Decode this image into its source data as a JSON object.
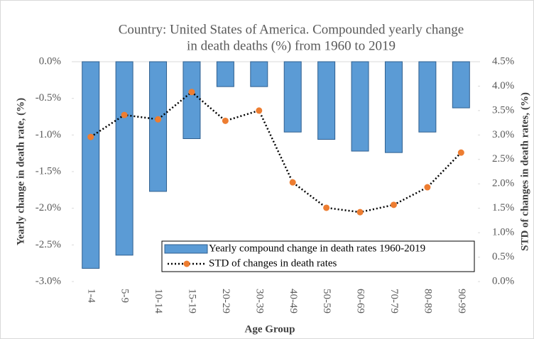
{
  "chart_data": {
    "type": "combo",
    "title": [
      "Country: United States of America. Compounded yearly change",
      "in death deaths (%) from 1960 to 2019"
    ],
    "x_label": "Age Group",
    "y_label": "Yearly change in death rate, (%)",
    "y2_label": "STD of changes in death rates, (%)",
    "categories": [
      "1-4",
      "5-9",
      "10-14",
      "15-19",
      "20-29",
      "30-39",
      "40-49",
      "50-59",
      "60-69",
      "70-79",
      "80-89",
      "90-99"
    ],
    "series": [
      {
        "name": "Yearly compound change in death rates 1960-2019",
        "type": "bar",
        "color": "#5b9bd5",
        "values": [
          -2.82,
          -2.64,
          -1.77,
          -1.05,
          -0.34,
          -0.34,
          -0.96,
          -1.06,
          -1.22,
          -1.24,
          -0.96,
          -0.63
        ]
      },
      {
        "name": "STD of changes in death rates",
        "type": "line",
        "axis": "y2",
        "color": "#ed7d31",
        "values": [
          2.96,
          3.41,
          3.32,
          3.88,
          3.29,
          3.5,
          2.03,
          1.51,
          1.42,
          1.57,
          1.93,
          2.64
        ]
      }
    ],
    "ylim": [
      -3.0,
      0.0
    ],
    "yticks": [
      {
        "value": 0.0,
        "label": "0.0%"
      },
      {
        "value": -0.5,
        "label": "-0.5%"
      },
      {
        "value": -1.0,
        "label": "-1.0%"
      },
      {
        "value": -1.5,
        "label": "-1.5%"
      },
      {
        "value": -2.0,
        "label": "-2.0%"
      },
      {
        "value": -2.5,
        "label": "-2.5%"
      },
      {
        "value": -3.0,
        "label": "-3.0%"
      }
    ],
    "y2lim": [
      0.0,
      4.5
    ],
    "y2ticks": [
      {
        "value": 4.5,
        "label": "4.5%"
      },
      {
        "value": 4.0,
        "label": "4.0%"
      },
      {
        "value": 3.5,
        "label": "3.5%"
      },
      {
        "value": 3.0,
        "label": "3.0%"
      },
      {
        "value": 2.5,
        "label": "2.5%"
      },
      {
        "value": 2.0,
        "label": "2.0%"
      },
      {
        "value": 1.5,
        "label": "1.5%"
      },
      {
        "value": 1.0,
        "label": "1.0%"
      },
      {
        "value": 0.5,
        "label": "0.5%"
      },
      {
        "value": 0.0,
        "label": "0.0%"
      }
    ],
    "grid": false
  }
}
